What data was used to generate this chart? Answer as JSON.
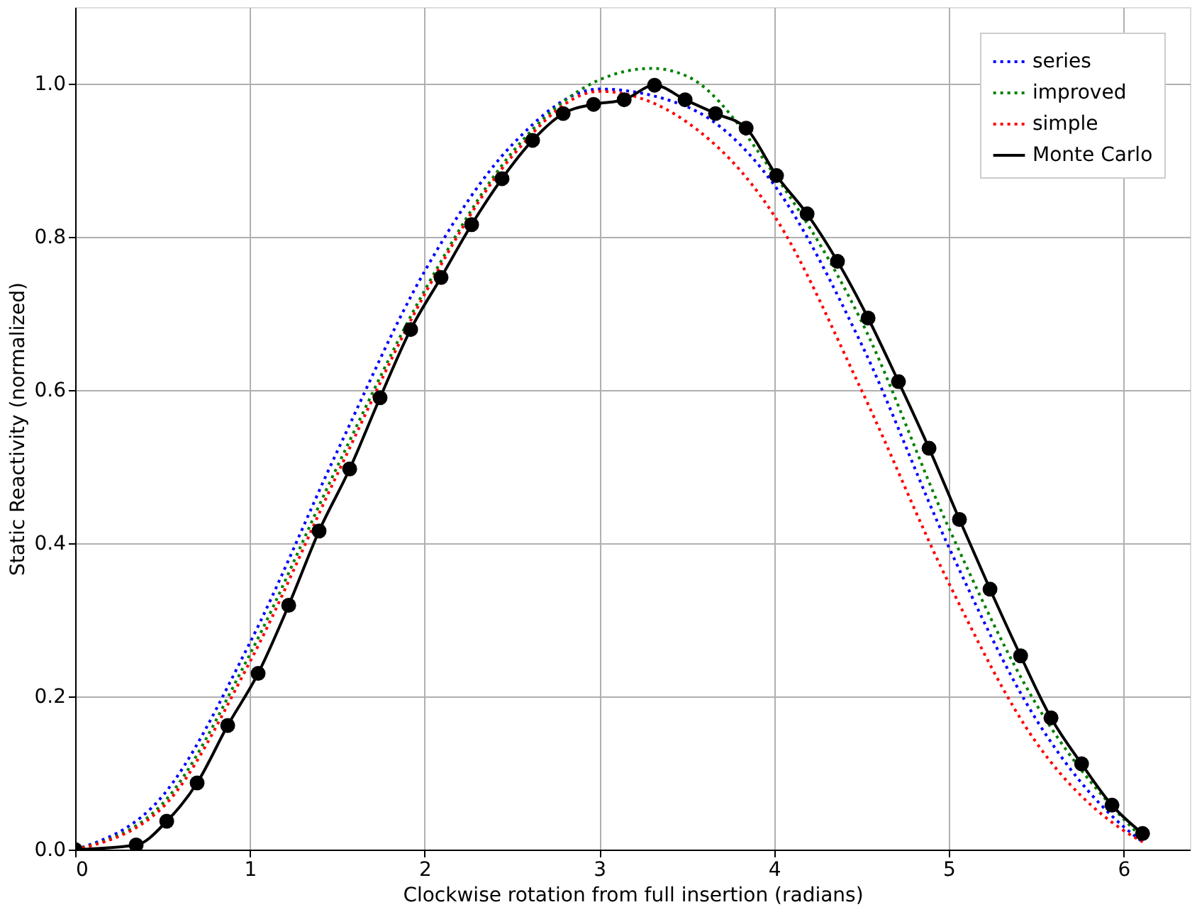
{
  "chart_data": {
    "type": "line",
    "xlabel": "Clockwise rotation from full insertion (radians)",
    "ylabel": "Static Reactivity (normalized)",
    "xlim": [
      0,
      6.38
    ],
    "ylim": [
      0,
      1.1
    ],
    "xticks": [
      0,
      1,
      2,
      3,
      4,
      5,
      6
    ],
    "yticks": [
      {
        "value": 0,
        "label": "0.0"
      },
      {
        "value": 0.2,
        "label": "0.2"
      },
      {
        "value": 0.4,
        "label": "0.4"
      },
      {
        "value": 0.6,
        "label": "0.6"
      },
      {
        "value": 0.8,
        "label": "0.8"
      },
      {
        "value": 1,
        "label": "1.0"
      }
    ],
    "grid": true,
    "legend": "top right",
    "series": [
      {
        "name": "series",
        "color": "#0000ff",
        "line_style": "dotted",
        "marker": "none",
        "x": [
          0,
          0.5,
          1,
          1.5,
          2,
          2.5,
          3,
          3.5,
          4,
          4.5,
          5,
          5.5,
          6,
          6.11
        ],
        "values": [
          0,
          0.07,
          0.27,
          0.52,
          0.755,
          0.92,
          0.993,
          0.97,
          0.868,
          0.66,
          0.395,
          0.17,
          0.03,
          0.01
        ]
      },
      {
        "name": "improved",
        "color": "#008000",
        "line_style": "dotted",
        "marker": "none",
        "x": [
          0,
          0.5,
          1,
          1.5,
          2,
          2.5,
          3,
          3.3,
          3.5,
          4,
          4.5,
          5,
          5.5,
          6,
          6.11
        ],
        "values": [
          0,
          0.06,
          0.255,
          0.5,
          0.73,
          0.91,
          1.005,
          1.02,
          1.01,
          0.882,
          0.69,
          0.42,
          0.19,
          0.04,
          0.015
        ]
      },
      {
        "name": "simple",
        "color": "#ff0000",
        "line_style": "dotted",
        "marker": "none",
        "x": [
          0,
          0.5,
          1,
          1.5,
          2,
          2.5,
          3,
          3.5,
          4,
          4.5,
          5,
          5.5,
          6,
          6.11
        ],
        "values": [
          0,
          0.055,
          0.245,
          0.49,
          0.725,
          0.905,
          0.99,
          0.95,
          0.828,
          0.6,
          0.348,
          0.14,
          0.025,
          0.01
        ]
      },
      {
        "name": "Monte Carlo",
        "color": "#000000",
        "line_style": "solid",
        "marker": "circle",
        "x": [
          0,
          0.349,
          0.524,
          0.698,
          0.873,
          1.047,
          1.222,
          1.396,
          1.571,
          1.745,
          1.92,
          2.094,
          2.269,
          2.443,
          2.618,
          2.793,
          2.967,
          3.142,
          3.316,
          3.491,
          3.665,
          3.84,
          4.014,
          4.189,
          4.363,
          4.538,
          4.712,
          4.887,
          5.061,
          5.236,
          5.411,
          5.585,
          5.76,
          5.934,
          6.109
        ],
        "values": [
          0,
          0.006,
          0.037,
          0.087,
          0.162,
          0.23,
          0.319,
          0.416,
          0.497,
          0.59,
          0.679,
          0.747,
          0.816,
          0.876,
          0.926,
          0.961,
          0.973,
          0.979,
          0.998,
          0.979,
          0.961,
          0.942,
          0.88,
          0.83,
          0.768,
          0.694,
          0.611,
          0.524,
          0.431,
          0.34,
          0.253,
          0.172,
          0.112,
          0.058,
          0.021
        ]
      }
    ]
  }
}
